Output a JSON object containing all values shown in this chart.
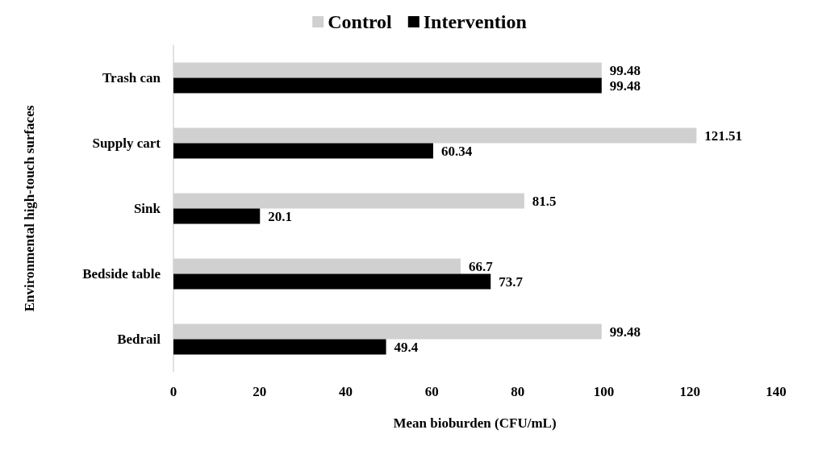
{
  "chart_data": {
    "type": "bar",
    "orientation": "horizontal",
    "xlabel": "Mean bioburden (CFU/mL)",
    "ylabel": "Environmental high-touch surfaces",
    "categories": [
      "Trash can",
      "Supply cart",
      "Sink",
      "Bedside table",
      "Bedrail"
    ],
    "series": [
      {
        "name": "Control",
        "color": "#d0d0d0",
        "values": [
          99.48,
          121.51,
          81.5,
          66.7,
          99.48
        ]
      },
      {
        "name": "Intervention",
        "color": "#000000",
        "values": [
          99.48,
          60.34,
          20.1,
          73.7,
          49.4
        ]
      }
    ],
    "xlim": [
      0,
      140
    ],
    "xticks": [
      0,
      20,
      40,
      60,
      80,
      100,
      120,
      140
    ],
    "grid": false,
    "legend": "top",
    "data_labels": true
  }
}
